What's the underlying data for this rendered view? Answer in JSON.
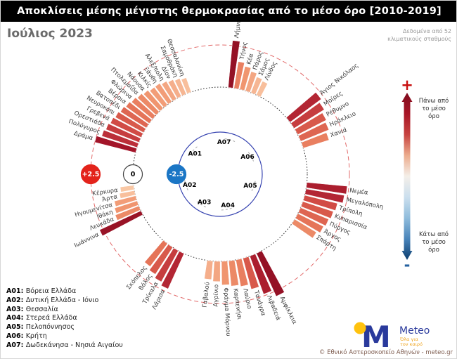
{
  "header": {
    "title": "Αποκλίσεις μέσης μέγιστης θερμοκρασίας από το μέσο όρο [2010-2019]"
  },
  "subheader": {
    "month": "Ιούλιος 2023",
    "source_note": "Δεδομένα από 52\nκλιματικούς σταθμούς"
  },
  "colorbar": {
    "plus": "+",
    "minus": "-",
    "above_label": "Πάνω από\nτο μέσο\nόρο",
    "below_label": "Κάτω από\nτο μέσο\nόρο",
    "gradient": [
      "#7f0c1d",
      "#a81526",
      "#c74340",
      "#ecac8d",
      "#f4efe9",
      "#cbdfee",
      "#8fbcdc",
      "#4984ba",
      "#0b3d6e"
    ]
  },
  "footer": {
    "logo_text": "Meteo",
    "logo_tagline": "Όλα για\nτον καιρό",
    "copyright": "© Εθνικό Αστεροσκοπείο Αθηνών - meteo.gr",
    "logo_blue": "#2a3a9c",
    "logo_yellow": "#ffc20e"
  },
  "chart_data": {
    "type": "radial_bar",
    "title": "Αποκλίσεις μέσης μέγιστης θερμοκρασίας από το μέσο όρο [2010-2019]",
    "units": "°C",
    "scale": {
      "inner_ring_value": -2.5,
      "zero_ring_value": 0,
      "outer_ring_value": 2.5,
      "badges": [
        {
          "label": "+2.5",
          "fill": "#e3231b",
          "text_color": "#ffffff"
        },
        {
          "label": "0",
          "fill": "#ffffff",
          "text_color": "#000000"
        },
        {
          "label": "-2.5",
          "fill": "#1b76c5",
          "text_color": "#ffffff"
        }
      ],
      "ring_colors": {
        "outer": "#e26a6a",
        "zero": "#333333",
        "inner": "#3643b0"
      }
    },
    "regions": [
      {
        "code": "A01",
        "name": "Βόρεια Ελλάδα",
        "start_deg": 284,
        "end_deg": 341,
        "label_deg": 309,
        "stations": [
          {
            "name": "Δράμα",
            "value": 2.5
          },
          {
            "name": "Πολύγυρος",
            "value": 2.2
          },
          {
            "name": "Ορεστιάδα",
            "value": 2.1
          },
          {
            "name": "Γρεβενά",
            "value": 2.0
          },
          {
            "name": "Νευροκόπι",
            "value": 1.9
          },
          {
            "name": "Βατοπέδι",
            "value": 1.8
          },
          {
            "name": "Βέροια",
            "value": 1.7
          },
          {
            "name": "Φλώρινα",
            "value": 1.6
          },
          {
            "name": "Πτολεμαΐδα",
            "value": 1.5
          },
          {
            "name": "Νάουσα",
            "value": 1.4
          },
          {
            "name": "Κιλκίς",
            "value": 1.3
          },
          {
            "name": "Ξάνθη",
            "value": 1.3
          },
          {
            "name": "Αλεξ/πολη",
            "value": 1.2
          },
          {
            "name": "Δίον",
            "value": 1.1
          },
          {
            "name": "Σαμοθράκη",
            "value": 1.0
          },
          {
            "name": "Θεσσαλονίκη",
            "value": 0.9
          }
        ]
      },
      {
        "code": "A02",
        "name": "Δυτική Ελλάδα - Ιόνιο",
        "start_deg": 242,
        "end_deg": 263,
        "label_deg": 250,
        "stations": [
          {
            "name": "Ιωάννινα",
            "value": 2.7
          },
          {
            "name": "Λευκάδα",
            "value": 1.5
          },
          {
            "name": "Ιθάκη",
            "value": 1.4
          },
          {
            "name": "Ηγουμενίτσα",
            "value": 1.3
          },
          {
            "name": "Άρτα",
            "value": 0.9
          },
          {
            "name": "Κέρκυρα",
            "value": 0.8
          }
        ]
      },
      {
        "code": "A03",
        "name": "Θεσσαλία",
        "start_deg": 204,
        "end_deg": 221,
        "label_deg": 209,
        "stations": [
          {
            "name": "Λάρισα",
            "value": 2.3
          },
          {
            "name": "Τρίκαλα",
            "value": 2.1
          },
          {
            "name": "Βόλος",
            "value": 1.9
          },
          {
            "name": "Σκόπελος",
            "value": 1.7
          }
        ]
      },
      {
        "code": "A04",
        "name": "Στερεά Ελλάδα",
        "start_deg": 151,
        "end_deg": 189,
        "label_deg": 166,
        "stations": [
          {
            "name": "Αμφίκλεια",
            "value": 2.8
          },
          {
            "name": "Λιβαδειά",
            "value": 2.4
          },
          {
            "name": "Τανάγρα",
            "value": 1.9
          },
          {
            "name": "Λαύριο",
            "value": 1.6
          },
          {
            "name": "Καρπενήσι",
            "value": 1.5
          },
          {
            "name": "Φράγμα Μόρνου",
            "value": 1.4
          },
          {
            "name": "Αγρίνιο",
            "value": 1.2
          },
          {
            "name": "Γαβαλού",
            "value": 1.1
          }
        ]
      },
      {
        "code": "A05",
        "name": "Πελοπόννησος",
        "start_deg": 95,
        "end_deg": 125,
        "label_deg": 111,
        "stations": [
          {
            "name": "Νεμέα",
            "value": 2.4
          },
          {
            "name": "Μεγαλόπολη",
            "value": 2.3
          },
          {
            "name": "Τρίπολη",
            "value": 2.0
          },
          {
            "name": "Κυπαρισσία",
            "value": 1.9
          },
          {
            "name": "Πύργος",
            "value": 1.8
          },
          {
            "name": "Άργος",
            "value": 1.7
          },
          {
            "name": "Σπάρτη",
            "value": 1.5
          }
        ]
      },
      {
        "code": "A06",
        "name": "Κρήτη",
        "start_deg": 49,
        "end_deg": 73,
        "label_deg": 58,
        "stations": [
          {
            "name": "Άγιος Νικόλαος",
            "value": 2.3
          },
          {
            "name": "Μοίρες",
            "value": 2.1
          },
          {
            "name": "Ρέθυμνο",
            "value": 1.9
          },
          {
            "name": "Ηράκλειο",
            "value": 1.8
          },
          {
            "name": "Χανιά",
            "value": 1.6
          }
        ]
      },
      {
        "code": "A07",
        "name": "Δωδεκάνησα - Νησιά Αιγαίου",
        "start_deg": 5,
        "end_deg": 28,
        "label_deg": 7,
        "stations": [
          {
            "name": "Λήμνος",
            "value": 2.8
          },
          {
            "name": "Τήνος",
            "value": 1.6
          },
          {
            "name": "Κέα",
            "value": 1.4
          },
          {
            "name": "Πάρος",
            "value": 1.2
          },
          {
            "name": "Σάμος",
            "value": 1.0
          },
          {
            "name": "Λίνδος",
            "value": 0.9
          }
        ]
      }
    ]
  }
}
